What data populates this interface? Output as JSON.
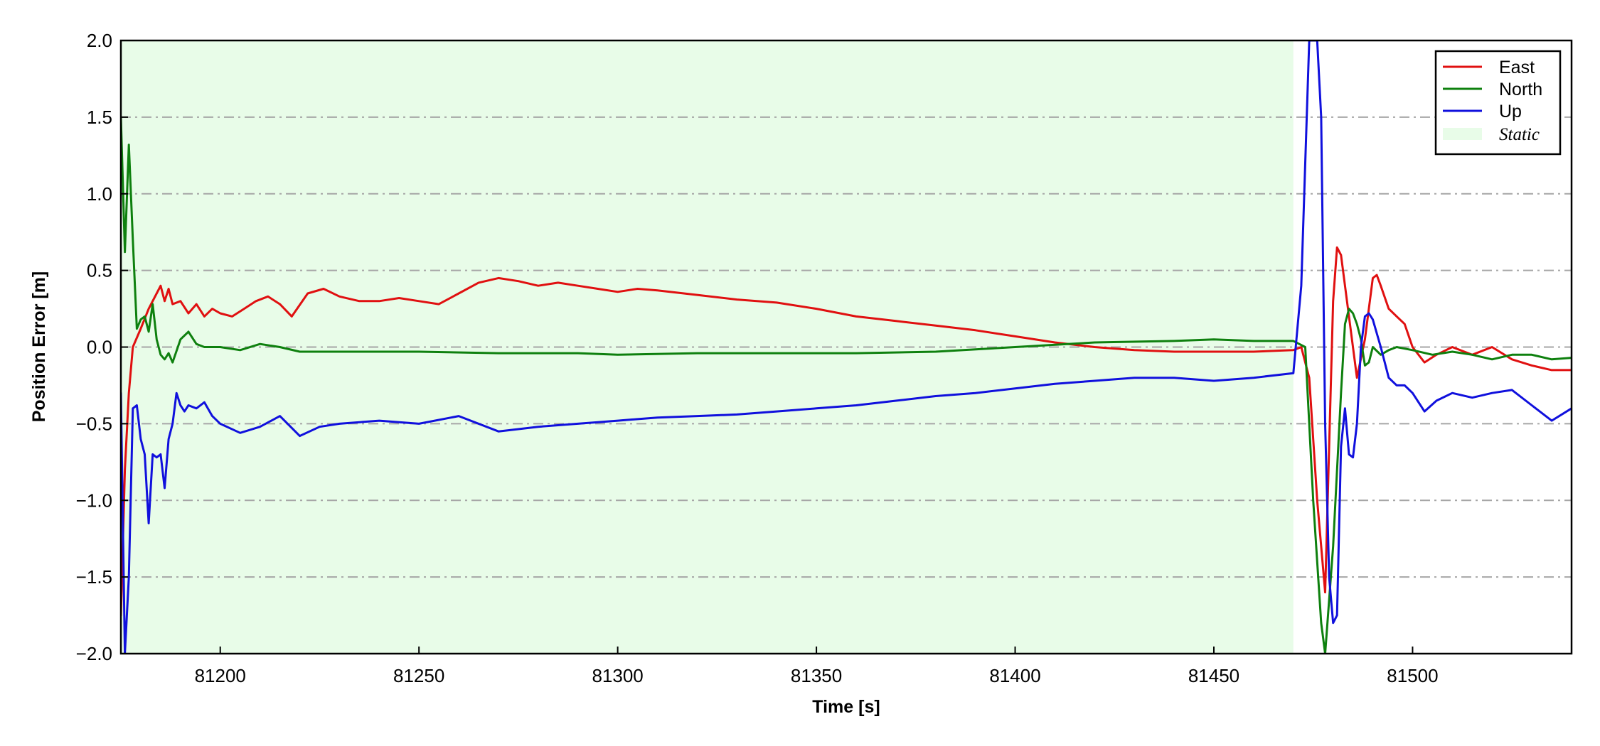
{
  "chart_data": {
    "type": "line",
    "title": "",
    "xlabel": "Time [s]",
    "ylabel": "Position Error [m]",
    "xlim": [
      81175,
      81540
    ],
    "ylim": [
      -2.0,
      2.0
    ],
    "x_ticks": [
      81200,
      81250,
      81300,
      81350,
      81400,
      81450,
      81500
    ],
    "y_ticks": [
      -2.0,
      -1.5,
      -1.0,
      -0.5,
      0.0,
      0.5,
      1.0,
      1.5,
      2.0
    ],
    "x_tick_labels": [
      "81200",
      "81250",
      "81300",
      "81350",
      "81400",
      "81450",
      "81500"
    ],
    "y_tick_labels": [
      "−2.0",
      "−1.5",
      "−1.0",
      "−0.5",
      "0.0",
      "0.5",
      "1.0",
      "1.5",
      "2.0"
    ],
    "grid": "horizontal dash-dot",
    "legend_position": "top-right",
    "shaded_region": {
      "name": "Static",
      "x_start": 81175,
      "x_end": 81470,
      "color": "#e8fce8"
    },
    "series": [
      {
        "name": "East",
        "color": "#e01010",
        "x": [
          81175,
          81176,
          81177,
          81178,
          81180,
          81182,
          81184,
          81185,
          81186,
          81187,
          81188,
          81190,
          81192,
          81194,
          81196,
          81198,
          81200,
          81203,
          81206,
          81209,
          81212,
          81215,
          81218,
          81222,
          81226,
          81230,
          81235,
          81240,
          81245,
          81250,
          81255,
          81260,
          81265,
          81270,
          81275,
          81280,
          81285,
          81290,
          81295,
          81300,
          81305,
          81310,
          81320,
          81330,
          81340,
          81350,
          81360,
          81370,
          81380,
          81390,
          81400,
          81410,
          81420,
          81430,
          81440,
          81450,
          81460,
          81470,
          81472,
          81474,
          81476,
          81478,
          81480,
          81481,
          81482,
          81484,
          81486,
          81488,
          81490,
          81491,
          81492,
          81494,
          81496,
          81498,
          81500,
          81503,
          81506,
          81510,
          81515,
          81520,
          81525,
          81530,
          81535,
          81540
        ],
        "y": [
          -1.75,
          -0.8,
          -0.3,
          0.0,
          0.12,
          0.25,
          0.35,
          0.4,
          0.3,
          0.38,
          0.28,
          0.3,
          0.22,
          0.28,
          0.2,
          0.25,
          0.22,
          0.2,
          0.25,
          0.3,
          0.33,
          0.28,
          0.2,
          0.35,
          0.38,
          0.33,
          0.3,
          0.3,
          0.32,
          0.3,
          0.28,
          0.35,
          0.42,
          0.45,
          0.43,
          0.4,
          0.42,
          0.4,
          0.38,
          0.36,
          0.38,
          0.37,
          0.34,
          0.31,
          0.29,
          0.25,
          0.2,
          0.17,
          0.14,
          0.11,
          0.07,
          0.03,
          0.0,
          -0.02,
          -0.03,
          -0.03,
          -0.03,
          -0.02,
          0.0,
          -0.2,
          -1.0,
          -1.6,
          0.3,
          0.65,
          0.6,
          0.2,
          -0.2,
          0.05,
          0.45,
          0.47,
          0.4,
          0.25,
          0.2,
          0.15,
          0.0,
          -0.1,
          -0.05,
          0.0,
          -0.05,
          0.0,
          -0.08,
          -0.12,
          -0.15,
          -0.15
        ]
      },
      {
        "name": "North",
        "color": "#0e800e",
        "x": [
          81175,
          81176,
          81177,
          81178,
          81179,
          81180,
          81181,
          81182,
          81183,
          81184,
          81185,
          81186,
          81187,
          81188,
          81190,
          81192,
          81194,
          81196,
          81200,
          81205,
          81210,
          81215,
          81220,
          81230,
          81250,
          81270,
          81290,
          81300,
          81320,
          81340,
          81360,
          81380,
          81400,
          81420,
          81440,
          81450,
          81460,
          81470,
          81473,
          81475,
          81477,
          81478,
          81480,
          81482,
          81483,
          81484,
          81485,
          81486,
          81487,
          81488,
          81489,
          81490,
          81492,
          81494,
          81496,
          81500,
          81505,
          81510,
          81515,
          81520,
          81525,
          81530,
          81535,
          81540
        ],
        "y": [
          1.5,
          0.62,
          1.32,
          0.7,
          0.12,
          0.18,
          0.2,
          0.1,
          0.28,
          0.05,
          -0.05,
          -0.08,
          -0.04,
          -0.1,
          0.05,
          0.1,
          0.02,
          0.0,
          0.0,
          -0.02,
          0.02,
          0.0,
          -0.03,
          -0.03,
          -0.03,
          -0.04,
          -0.04,
          -0.05,
          -0.04,
          -0.04,
          -0.04,
          -0.03,
          0.0,
          0.03,
          0.04,
          0.05,
          0.04,
          0.04,
          0.0,
          -1.0,
          -1.8,
          -2.0,
          -1.3,
          -0.3,
          0.15,
          0.25,
          0.22,
          0.15,
          0.05,
          -0.12,
          -0.1,
          0.0,
          -0.05,
          -0.02,
          0.0,
          -0.02,
          -0.05,
          -0.03,
          -0.05,
          -0.08,
          -0.05,
          -0.05,
          -0.08,
          -0.07
        ]
      },
      {
        "name": "Up",
        "color": "#1010dd",
        "x": [
          81175,
          81176,
          81177,
          81178,
          81179,
          81180,
          81181,
          81182,
          81183,
          81184,
          81185,
          81186,
          81187,
          81188,
          81189,
          81190,
          81191,
          81192,
          81194,
          81196,
          81198,
          81200,
          81205,
          81210,
          81215,
          81220,
          81225,
          81230,
          81240,
          81250,
          81260,
          81270,
          81280,
          81290,
          81300,
          81310,
          81320,
          81330,
          81340,
          81350,
          81360,
          81370,
          81380,
          81390,
          81400,
          81410,
          81420,
          81430,
          81440,
          81450,
          81460,
          81470,
          81472,
          81474,
          81476,
          81477,
          81478,
          81479,
          81480,
          81481,
          81482,
          81483,
          81484,
          81485,
          81486,
          81487,
          81488,
          81489,
          81490,
          81492,
          81494,
          81496,
          81498,
          81500,
          81503,
          81506,
          81510,
          81515,
          81520,
          81525,
          81530,
          81535,
          81540
        ],
        "y": [
          -0.3,
          -2.0,
          -1.5,
          -0.4,
          -0.38,
          -0.6,
          -0.7,
          -1.15,
          -0.7,
          -0.72,
          -0.7,
          -0.92,
          -0.6,
          -0.5,
          -0.3,
          -0.38,
          -0.42,
          -0.38,
          -0.4,
          -0.36,
          -0.45,
          -0.5,
          -0.56,
          -0.52,
          -0.45,
          -0.58,
          -0.52,
          -0.5,
          -0.48,
          -0.5,
          -0.45,
          -0.55,
          -0.52,
          -0.5,
          -0.48,
          -0.46,
          -0.45,
          -0.44,
          -0.42,
          -0.4,
          -0.38,
          -0.35,
          -0.32,
          -0.3,
          -0.27,
          -0.24,
          -0.22,
          -0.2,
          -0.2,
          -0.22,
          -0.2,
          -0.17,
          0.4,
          2.0,
          2.0,
          1.5,
          -0.5,
          -1.5,
          -1.8,
          -1.75,
          -0.65,
          -0.4,
          -0.7,
          -0.72,
          -0.5,
          0.0,
          0.2,
          0.22,
          0.18,
          0.0,
          -0.2,
          -0.25,
          -0.25,
          -0.3,
          -0.42,
          -0.35,
          -0.3,
          -0.33,
          -0.3,
          -0.28,
          -0.38,
          -0.48,
          -0.4
        ]
      }
    ]
  }
}
